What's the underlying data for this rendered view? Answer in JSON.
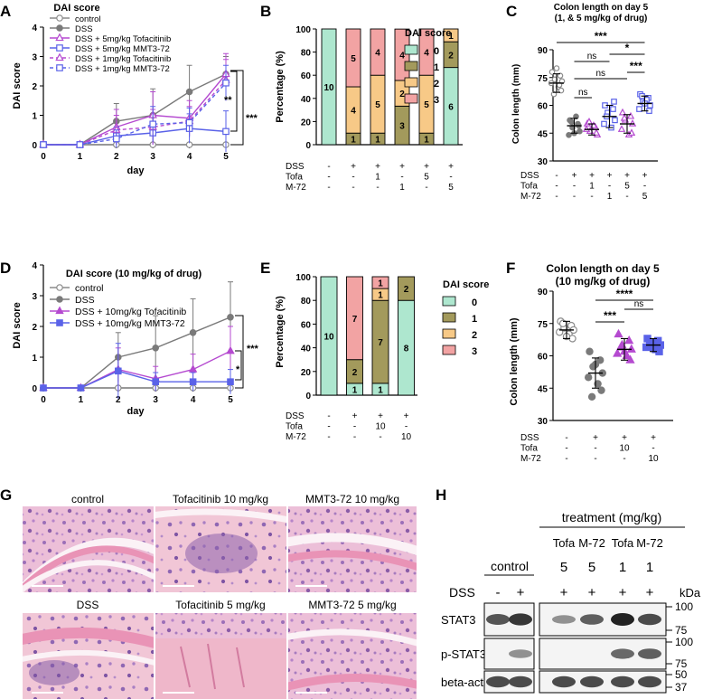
{
  "panel_letters": [
    "A",
    "B",
    "C",
    "D",
    "E",
    "F",
    "G",
    "H"
  ],
  "colors": {
    "control": "#8c8c8c",
    "dss": "#7a7a7a",
    "tofa": "#b54ad0",
    "mmt": "#5a62e8",
    "score0": "#aee7cf",
    "score1": "#a39a5c",
    "score2": "#f7c987",
    "score3": "#f2a3a3"
  },
  "chart_data": [
    {
      "id": "A",
      "type": "line",
      "title": "DAI score",
      "xlabel": "day",
      "ylabel": "DAI score",
      "x": [
        0,
        1,
        2,
        3,
        4,
        5
      ],
      "xlim": [
        0,
        5
      ],
      "ylim": [
        0,
        4
      ],
      "yticks": [
        0,
        1,
        2,
        3,
        4
      ],
      "series": [
        {
          "name": "control",
          "values": [
            0,
            0,
            0,
            0,
            0,
            0
          ],
          "err": [
            0,
            0,
            0,
            0,
            0,
            0
          ]
        },
        {
          "name": "DSS",
          "values": [
            0,
            0,
            0.8,
            1.0,
            1.8,
            2.4
          ],
          "err": [
            0,
            0,
            0.6,
            0.9,
            0.9,
            0.6
          ]
        },
        {
          "name": "DSS + 5mg/kg Tofacitinib",
          "values": [
            0,
            0,
            0.6,
            1.0,
            0.9,
            2.4
          ],
          "err": [
            0,
            0,
            0.6,
            0.8,
            0.6,
            0.7
          ]
        },
        {
          "name": "DSS + 5mg/kg MMT3-72",
          "values": [
            0,
            0,
            0.3,
            0.4,
            0.55,
            0.45
          ],
          "err": [
            0,
            0,
            0.3,
            0.4,
            0.5,
            0.7
          ]
        },
        {
          "name": "DSS + 1mg/kg Tofacitinib",
          "values": [
            0,
            0,
            0.5,
            0.6,
            0.8,
            2.2
          ],
          "err": [
            0,
            0,
            0.5,
            0.6,
            0.5,
            0.7
          ]
        },
        {
          "name": "DSS + 1mg/kg MMT3-72",
          "values": [
            0,
            0,
            0.2,
            0.7,
            0.75,
            2.1
          ],
          "err": [
            0,
            0,
            0.3,
            0.6,
            0.5,
            0.6
          ]
        }
      ],
      "annotations": [
        "**",
        "***"
      ]
    },
    {
      "id": "B",
      "type": "bar",
      "stacked": true,
      "ylabel": "Percentage (%)",
      "ylim": [
        0,
        100
      ],
      "yticks": [
        0,
        20,
        40,
        60,
        80,
        100
      ],
      "legend_title": "DAI score",
      "legend": [
        "0",
        "1",
        "2",
        "3"
      ],
      "bars": [
        {
          "s0": 100,
          "s1": 0,
          "s2": 0,
          "s3": 0,
          "labels": [
            "10",
            "",
            "",
            ""
          ]
        },
        {
          "s0": 0,
          "s1": 10,
          "s2": 40,
          "s3": 50,
          "labels": [
            "",
            "1",
            "4",
            "5"
          ]
        },
        {
          "s0": 0,
          "s1": 10,
          "s2": 50,
          "s3": 40,
          "labels": [
            "",
            "1",
            "5",
            "4"
          ]
        },
        {
          "s0": 0,
          "s1": 33.3,
          "s2": 22.2,
          "s3": 44.4,
          "labels": [
            "",
            "3",
            "2",
            "4"
          ]
        },
        {
          "s0": 0,
          "s1": 10,
          "s2": 50,
          "s3": 40,
          "labels": [
            "",
            "1",
            "5",
            "4"
          ]
        },
        {
          "s0": 66.7,
          "s1": 22.2,
          "s2": 11.1,
          "s3": 0,
          "labels": [
            "6",
            "2",
            "1",
            ""
          ]
        }
      ],
      "table": {
        "rows": [
          "DSS",
          "Tofa",
          "M-72"
        ],
        "values": [
          [
            "-",
            "+",
            "+",
            "+",
            "+",
            "+"
          ],
          [
            "-",
            "-",
            "1",
            "-",
            "5",
            "-"
          ],
          [
            "-",
            "-",
            "-",
            "1",
            "-",
            "5"
          ]
        ]
      }
    },
    {
      "id": "C",
      "type": "scatter",
      "title": "Colon length on day 5",
      "subtitle": "(1, & 5 mg/kg of drug)",
      "ylabel": "Colon length (mm)",
      "ylim": [
        30,
        90
      ],
      "yticks": [
        30,
        45,
        60,
        75,
        90
      ],
      "groups": [
        {
          "mean": 72,
          "sd": 5,
          "points": [
            78,
            76,
            74,
            73,
            72,
            70,
            68,
            66,
            80,
            71
          ],
          "marker": "circle-open",
          "color": "control"
        },
        {
          "mean": 49,
          "sd": 4,
          "points": [
            52,
            50,
            48,
            46,
            44,
            54,
            49,
            51,
            45
          ],
          "marker": "circle-filled",
          "color": "dss"
        },
        {
          "mean": 47,
          "sd": 3,
          "points": [
            50,
            48,
            46,
            44,
            47,
            49,
            45,
            51
          ],
          "marker": "triangle-open",
          "color": "tofa"
        },
        {
          "mean": 54,
          "sd": 6,
          "points": [
            60,
            58,
            56,
            52,
            50,
            48,
            62,
            54
          ],
          "marker": "square-open",
          "color": "mmt"
        },
        {
          "mean": 50,
          "sd": 5,
          "points": [
            56,
            54,
            52,
            50,
            47,
            44,
            45,
            53
          ],
          "marker": "triangle-open",
          "color": "tofa"
        },
        {
          "mean": 61,
          "sd": 4,
          "points": [
            66,
            64,
            62,
            60,
            58,
            63,
            57,
            65,
            61
          ],
          "marker": "square-open",
          "color": "mmt"
        }
      ],
      "significance": [
        {
          "from": 0,
          "to": 5,
          "label": "***"
        },
        {
          "from": 3,
          "to": 5,
          "label": "*"
        },
        {
          "from": 1,
          "to": 3,
          "label": "ns"
        },
        {
          "from": 1,
          "to": 4,
          "label": "ns"
        },
        {
          "from": 4,
          "to": 5,
          "label": "***"
        },
        {
          "from": 1,
          "to": 2,
          "label": "ns"
        }
      ],
      "table": {
        "rows": [
          "DSS",
          "Tofa",
          "M-72"
        ],
        "values": [
          [
            "-",
            "+",
            "+",
            "+",
            "+",
            "+"
          ],
          [
            "-",
            "-",
            "1",
            "-",
            "5",
            "-"
          ],
          [
            "-",
            "-",
            "-",
            "1",
            "-",
            "5"
          ]
        ]
      }
    },
    {
      "id": "D",
      "type": "line",
      "title": "DAI score (10 mg/kg of drug)",
      "xlabel": "day",
      "ylabel": "DAI score",
      "x": [
        0,
        1,
        2,
        3,
        4,
        5
      ],
      "xlim": [
        0,
        5
      ],
      "ylim": [
        0,
        4
      ],
      "yticks": [
        0,
        1,
        2,
        3,
        4
      ],
      "series": [
        {
          "name": "control",
          "values": [
            0,
            0,
            0,
            0,
            0,
            0
          ],
          "err": [
            0,
            0,
            0,
            0,
            0,
            0
          ]
        },
        {
          "name": "DSS",
          "values": [
            0,
            0,
            1.0,
            1.3,
            1.8,
            2.3
          ],
          "err": [
            0,
            0,
            0.8,
            1.05,
            1.1,
            1.15
          ]
        },
        {
          "name": "DSS + 10mg/kg Tofacitinib",
          "values": [
            0,
            0,
            0.6,
            0.3,
            0.6,
            1.2
          ],
          "err": [
            0,
            0,
            0.7,
            0.4,
            0.5,
            0.8
          ]
        },
        {
          "name": "DSS + 10mg/kg MMT3-72",
          "values": [
            0,
            0,
            0.55,
            0.2,
            0.2,
            0.2
          ],
          "err": [
            0,
            0,
            0.9,
            0.3,
            0.3,
            0.4
          ]
        }
      ],
      "annotations": [
        "*",
        "***"
      ]
    },
    {
      "id": "E",
      "type": "bar",
      "stacked": true,
      "ylabel": "Percentage (%)",
      "ylim": [
        0,
        100
      ],
      "yticks": [
        0,
        20,
        40,
        60,
        80,
        100
      ],
      "legend_title": "DAI score",
      "legend": [
        "0",
        "1",
        "2",
        "3"
      ],
      "bars": [
        {
          "s0": 100,
          "s1": 0,
          "s2": 0,
          "s3": 0,
          "labels": [
            "10",
            "",
            "",
            ""
          ]
        },
        {
          "s0": 10,
          "s1": 20,
          "s2": 0,
          "s3": 70,
          "labels": [
            "1",
            "2",
            "",
            "7"
          ]
        },
        {
          "s0": 10,
          "s1": 70,
          "s2": 10,
          "s3": 10,
          "labels": [
            "1",
            "7",
            "1",
            "1"
          ]
        },
        {
          "s0": 80,
          "s1": 20,
          "s2": 0,
          "s3": 0,
          "labels": [
            "8",
            "2",
            "",
            ""
          ]
        }
      ],
      "table": {
        "rows": [
          "DSS",
          "Tofa",
          "M-72"
        ],
        "values": [
          [
            "-",
            "+",
            "+",
            "+"
          ],
          [
            "-",
            "-",
            "10",
            "-"
          ],
          [
            "-",
            "-",
            "-",
            "10"
          ]
        ]
      }
    },
    {
      "id": "F",
      "type": "scatter",
      "title": "Colon length on day 5",
      "subtitle": "(10 mg/kg of drug)",
      "ylabel": "Colon length (mm)",
      "ylim": [
        30,
        90
      ],
      "yticks": [
        30,
        45,
        60,
        75,
        90
      ],
      "groups": [
        {
          "mean": 72,
          "sd": 4,
          "points": [
            76,
            74,
            73,
            72,
            71,
            70,
            68,
            75,
            69
          ],
          "marker": "circle-open",
          "color": "control"
        },
        {
          "mean": 52,
          "sd": 7,
          "points": [
            62,
            58,
            55,
            52,
            50,
            47,
            44,
            41,
            56
          ],
          "marker": "circle-filled",
          "color": "dss"
        },
        {
          "mean": 63,
          "sd": 5,
          "points": [
            70,
            67,
            65,
            63,
            61,
            60,
            58,
            64,
            62
          ],
          "marker": "triangle-filled",
          "color": "tofa"
        },
        {
          "mean": 65,
          "sd": 3,
          "points": [
            68,
            67,
            66,
            65,
            64,
            63,
            62,
            66,
            64
          ],
          "marker": "square-filled",
          "color": "mmt"
        }
      ],
      "significance": [
        {
          "from": 1,
          "to": 3,
          "label": "****"
        },
        {
          "from": 1,
          "to": 2,
          "label": "***"
        },
        {
          "from": 2,
          "to": 3,
          "label": "ns"
        }
      ],
      "table": {
        "rows": [
          "DSS",
          "Tofa",
          "M-72"
        ],
        "values": [
          [
            "-",
            "+",
            "+",
            "+"
          ],
          [
            "-",
            "-",
            "10",
            "-"
          ],
          [
            "-",
            "-",
            "-",
            "10"
          ]
        ]
      }
    }
  ],
  "histology": {
    "panels": [
      "control",
      "Tofacitinib 10 mg/kg",
      "MMT3-72 10 mg/kg",
      "DSS",
      "Tofacitinib 5 mg/kg",
      "MMT3-72 5 mg/kg"
    ]
  },
  "western": {
    "treatment_label": "treatment (mg/kg)",
    "control_label": "control",
    "drug_labels": [
      "Tofa",
      "M-72",
      "Tofa",
      "M-72"
    ],
    "dose_labels": [
      "5",
      "5",
      "1",
      "1"
    ],
    "dss_label": "DSS",
    "dss_values": [
      "-",
      "+",
      "+",
      "+",
      "+",
      "+"
    ],
    "kda_label": "kDa",
    "blots": [
      {
        "name": "STAT3",
        "markers": [
          "100",
          "75"
        ],
        "intensity": [
          0.75,
          0.9,
          0.45,
          0.7,
          1.0,
          0.8
        ]
      },
      {
        "name": "p-STAT3",
        "markers": [
          "100",
          "75"
        ],
        "intensity": [
          0.0,
          0.45,
          0.0,
          0.0,
          0.65,
          0.7
        ]
      },
      {
        "name": "beta-actin",
        "markers": [
          "50",
          "37"
        ],
        "intensity": [
          0.8,
          0.8,
          0.8,
          0.8,
          0.8,
          0.8
        ]
      }
    ]
  }
}
